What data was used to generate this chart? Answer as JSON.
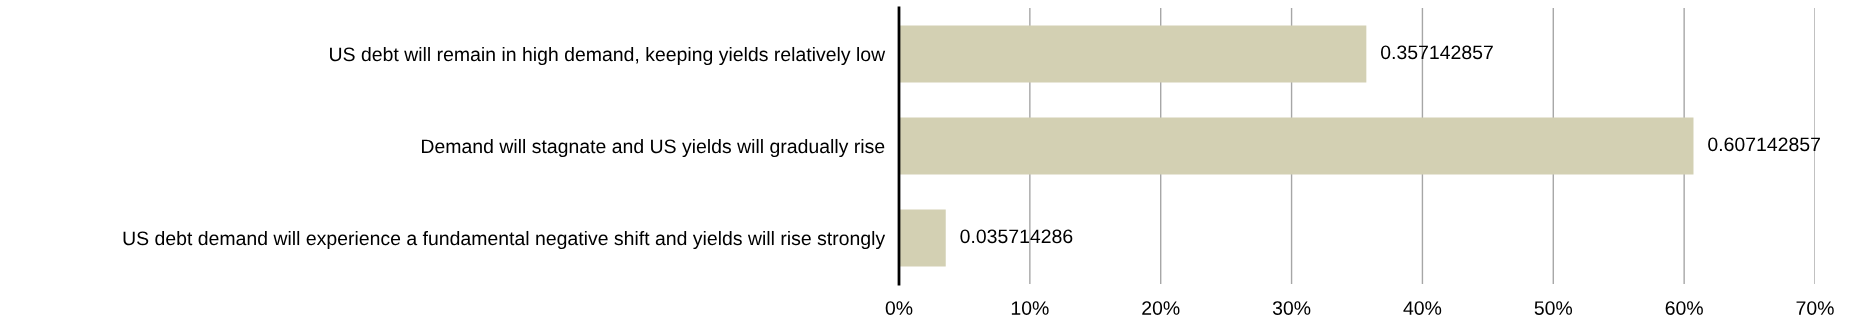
{
  "chart_data": {
    "type": "bar",
    "orientation": "horizontal",
    "categories": [
      "US debt will remain in high demand, keeping yields relatively low",
      "Demand will stagnate and US yields will gradually rise",
      "US debt demand will experience a fundamental negative shift and yields will rise strongly"
    ],
    "values": [
      0.357142857,
      0.607142857,
      0.035714286
    ],
    "color": "#d3d0b3",
    "xlim": [
      0,
      0.7
    ],
    "xticks": [
      {
        "value": 0,
        "label": "0%"
      },
      {
        "value": 0.1,
        "label": "10%"
      },
      {
        "value": 0.2,
        "label": "20%"
      },
      {
        "value": 0.3,
        "label": "30%"
      },
      {
        "value": 0.4,
        "label": "40%"
      },
      {
        "value": 0.5,
        "label": "50%"
      },
      {
        "value": 0.6,
        "label": "60%"
      },
      {
        "value": 0.7,
        "label": "70%"
      }
    ],
    "grid": "x",
    "data_labels": true
  }
}
